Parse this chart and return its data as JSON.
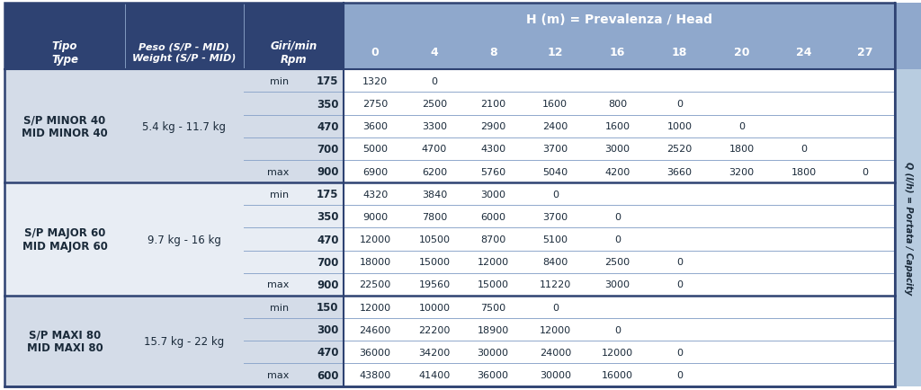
{
  "header_bg": "#2e4272",
  "header_text_color": "#ffffff",
  "subheader_bg": "#8fa8cc",
  "col_left_bg1": "#d4dce8",
  "col_left_bg2": "#e8edf4",
  "data_bg": "#ffffff",
  "right_bar_bg": "#b8cce0",
  "border_dark": "#2e4272",
  "border_light": "#8fa8cc",
  "text_dark": "#1a2a3a",
  "sections": [
    {
      "name": "S/P MINOR 40\nMID MINOR 40",
      "weight": "5.4 kg - 11.7 kg",
      "rows": [
        {
          "label": "min",
          "rpm": "175",
          "values": [
            "1320",
            "0",
            "",
            "",
            "",
            "",
            "",
            "",
            ""
          ]
        },
        {
          "label": "",
          "rpm": "350",
          "values": [
            "2750",
            "2500",
            "2100",
            "1600",
            "800",
            "0",
            "",
            "",
            ""
          ]
        },
        {
          "label": "",
          "rpm": "470",
          "values": [
            "3600",
            "3300",
            "2900",
            "2400",
            "1600",
            "1000",
            "0",
            "",
            ""
          ]
        },
        {
          "label": "",
          "rpm": "700",
          "values": [
            "5000",
            "4700",
            "4300",
            "3700",
            "3000",
            "2520",
            "1800",
            "0",
            ""
          ]
        },
        {
          "label": "max",
          "rpm": "900",
          "values": [
            "6900",
            "6200",
            "5760",
            "5040",
            "4200",
            "3660",
            "3200",
            "1800",
            "0"
          ]
        }
      ]
    },
    {
      "name": "S/P MAJOR 60\nMID MAJOR 60",
      "weight": "9.7 kg - 16 kg",
      "rows": [
        {
          "label": "min",
          "rpm": "175",
          "values": [
            "4320",
            "3840",
            "3000",
            "0",
            "",
            "",
            "",
            "",
            ""
          ]
        },
        {
          "label": "",
          "rpm": "350",
          "values": [
            "9000",
            "7800",
            "6000",
            "3700",
            "0",
            "",
            "",
            "",
            ""
          ]
        },
        {
          "label": "",
          "rpm": "470",
          "values": [
            "12000",
            "10500",
            "8700",
            "5100",
            "0",
            "",
            "",
            "",
            ""
          ]
        },
        {
          "label": "",
          "rpm": "700",
          "values": [
            "18000",
            "15000",
            "12000",
            "8400",
            "2500",
            "0",
            "",
            "",
            ""
          ]
        },
        {
          "label": "max",
          "rpm": "900",
          "values": [
            "22500",
            "19560",
            "15000",
            "11220",
            "3000",
            "0",
            "",
            "",
            ""
          ]
        }
      ]
    },
    {
      "name": "S/P MAXI 80\nMID MAXI 80",
      "weight": "15.7 kg - 22 kg",
      "rows": [
        {
          "label": "min",
          "rpm": "150",
          "values": [
            "12000",
            "10000",
            "7500",
            "0",
            "",
            "",
            "",
            "",
            ""
          ]
        },
        {
          "label": "",
          "rpm": "300",
          "values": [
            "24600",
            "22200",
            "18900",
            "12000",
            "0",
            "",
            "",
            "",
            ""
          ]
        },
        {
          "label": "",
          "rpm": "470",
          "values": [
            "36000",
            "34200",
            "30000",
            "24000",
            "12000",
            "0",
            "",
            "",
            ""
          ]
        },
        {
          "label": "max",
          "rpm": "600",
          "values": [
            "43800",
            "41400",
            "36000",
            "30000",
            "16000",
            "0",
            "",
            "",
            ""
          ]
        }
      ]
    }
  ],
  "head_vals": [
    "0",
    "4",
    "8",
    "12",
    "16",
    "18",
    "20",
    "24",
    "27"
  ],
  "right_label": "Q (l/h) = Portata / Capacity",
  "figsize": [
    10.24,
    4.35
  ],
  "dpi": 100
}
